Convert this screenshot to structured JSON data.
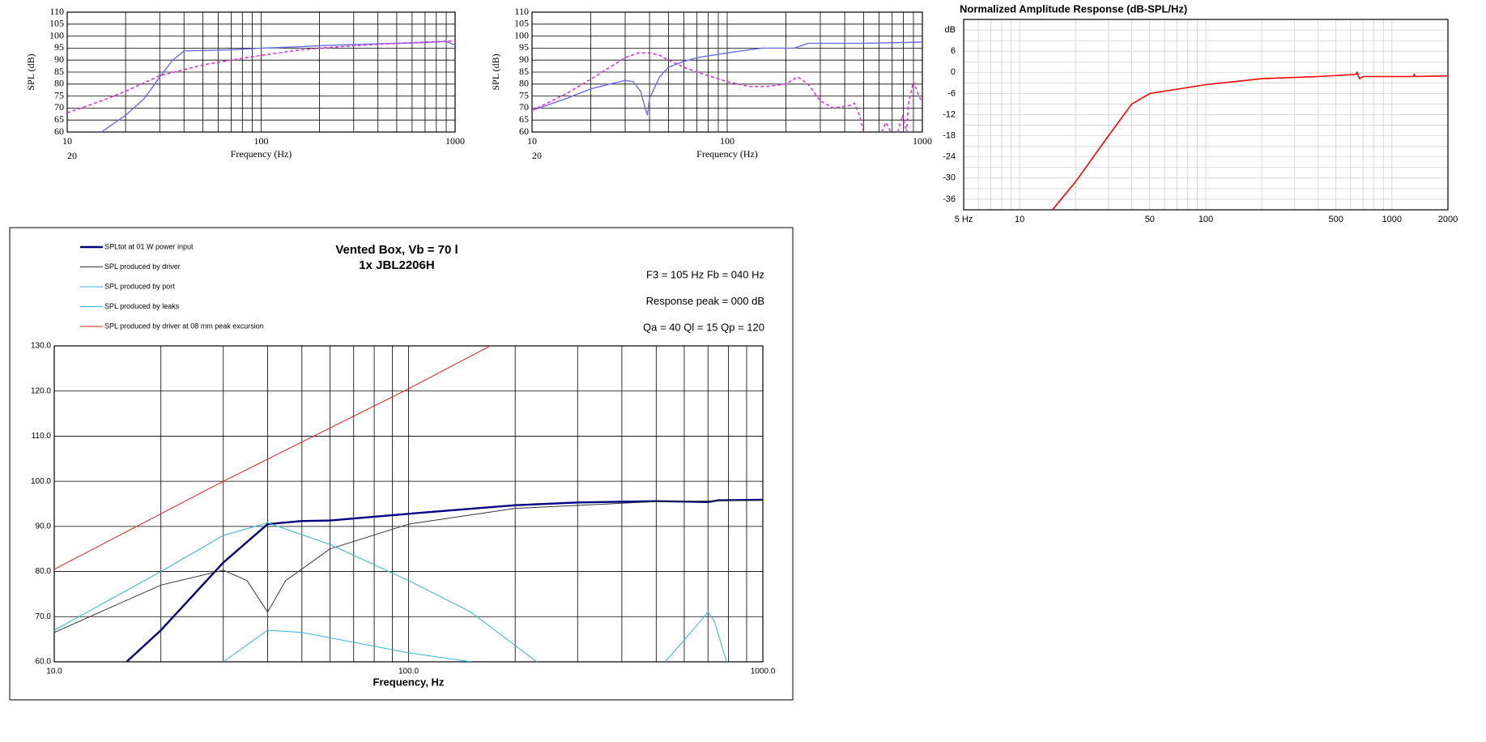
{
  "chart_data": [
    {
      "type": "line",
      "xscale": "log",
      "xlabel": "Frequency (Hz)",
      "ylabel": "SPL (dB)",
      "annotation": "20",
      "xlim": [
        10,
        1000
      ],
      "ylim": [
        60,
        110
      ],
      "xticks": [
        10,
        100,
        1000
      ],
      "yticks": [
        60,
        65,
        70,
        75,
        80,
        85,
        90,
        95,
        100,
        105,
        110
      ],
      "xminor": [
        20,
        30,
        40,
        50,
        60,
        70,
        80,
        90,
        200,
        300,
        400,
        500,
        600,
        700,
        800,
        900
      ],
      "grid": true,
      "grid_color": "#000000",
      "series": [
        {
          "color": "#6b6bef",
          "dash": false,
          "line_width": 1.4,
          "x": [
            15,
            20,
            25,
            30,
            35,
            40,
            50,
            70,
            100,
            150,
            200,
            300,
            500,
            700,
            900,
            950,
            1000
          ],
          "values": [
            60,
            67,
            74,
            83,
            90,
            93.8,
            94,
            94.3,
            95,
            95.5,
            96,
            96.5,
            97,
            97.3,
            97.8,
            97,
            96.3
          ]
        },
        {
          "color": "#e030e0",
          "dash": true,
          "line_width": 1.6,
          "x": [
            10,
            15,
            20,
            30,
            40,
            50,
            70,
            100,
            150,
            200,
            300,
            500,
            700,
            1000
          ],
          "values": [
            68,
            73,
            77,
            83.5,
            86,
            88,
            90,
            92,
            94,
            95,
            96,
            97,
            97.5,
            98
          ]
        }
      ]
    },
    {
      "type": "line",
      "xscale": "log",
      "xlabel": "Frequency (Hz)",
      "ylabel": "SPL (dB)",
      "annotation": "20",
      "xlim": [
        10,
        1000
      ],
      "ylim": [
        60,
        110
      ],
      "xticks": [
        10,
        100,
        1000
      ],
      "yticks": [
        60,
        65,
        70,
        75,
        80,
        85,
        90,
        95,
        100,
        105,
        110
      ],
      "xminor": [
        20,
        30,
        40,
        50,
        60,
        70,
        80,
        90,
        200,
        300,
        400,
        500,
        600,
        700,
        800,
        900
      ],
      "grid": true,
      "grid_color": "#000000",
      "series": [
        {
          "color": "#6b6bef",
          "dash": false,
          "line_width": 1.4,
          "x": [
            10,
            15,
            20,
            25,
            30,
            33,
            36,
            38,
            39,
            40,
            45,
            50,
            60,
            70,
            100,
            150,
            220,
            240,
            260,
            300,
            500,
            1000
          ],
          "values": [
            69,
            74,
            78,
            80,
            81.5,
            81,
            77,
            70,
            67,
            74,
            83,
            87,
            89.5,
            91,
            93,
            95,
            95,
            96,
            97,
            97,
            97,
            97.5
          ]
        },
        {
          "color": "#e030e0",
          "dash": true,
          "line_width": 1.6,
          "x": [
            10,
            15,
            20,
            25,
            30,
            35,
            40,
            45,
            50,
            60,
            70,
            100,
            130,
            160,
            200,
            230,
            260,
            300,
            350,
            420,
            450,
            480,
            500,
            560,
            620,
            650,
            690,
            720,
            750,
            790,
            830,
            850,
            900,
            950,
            1000
          ],
          "values": [
            69,
            76,
            82,
            87,
            91,
            93,
            93,
            92,
            90,
            87,
            85,
            81,
            79,
            79,
            80,
            83,
            80,
            73,
            70,
            71,
            72,
            66,
            60,
            null,
            60,
            64,
            60,
            null,
            60,
            67,
            60,
            72,
            81,
            76,
            72
          ]
        }
      ]
    },
    {
      "type": "line",
      "xscale": "log",
      "title": "Normalized Amplitude Response (dB-SPL/Hz)",
      "xlim": [
        5,
        2000
      ],
      "ylim": [
        -39,
        15
      ],
      "xticks": [
        {
          "value": 5,
          "label": "5 Hz"
        },
        10,
        50,
        100,
        500,
        1000,
        2000
      ],
      "yticks": [
        {
          "value": 12,
          "label": "dB"
        },
        6,
        0,
        -6,
        -12,
        -18,
        -24,
        -30,
        -36
      ],
      "xminor": [
        6,
        7,
        8,
        9,
        20,
        30,
        40,
        60,
        70,
        80,
        90,
        200,
        300,
        400,
        600,
        700,
        800,
        900
      ],
      "yminor": [
        -33,
        -27,
        -21,
        -15,
        -9,
        -3,
        3,
        9
      ],
      "grid": true,
      "grid_color": "#d0d0d0",
      "series": [
        {
          "color": "#ff0000",
          "dash": false,
          "line_width": 1.6,
          "x": [
            15,
            20,
            30,
            40,
            50,
            100,
            200,
            400,
            640,
            650,
            670,
            700,
            1300,
            1320,
            1340,
            2000
          ],
          "values": [
            -39,
            -31,
            -18,
            -9,
            -6,
            -3.5,
            -1.8,
            -1.2,
            -0.6,
            0,
            -1.8,
            -1.2,
            -1.2,
            -0.6,
            -1.2,
            -1
          ]
        }
      ]
    },
    {
      "type": "line",
      "xscale": "log",
      "title": "Vented Box, Vb = 70 l",
      "subtitle": "1x JBL2206H",
      "xlabel": "Frequency, Hz",
      "notes": [
        "F3 = 105 Hz  Fb = 040 Hz",
        "Response  peak = 000 dB",
        "Qa = 40  Ql = 15  Qp = 120"
      ],
      "xlim": [
        10,
        1000
      ],
      "ylim": [
        60,
        130
      ],
      "xticks": [
        {
          "value": 10,
          "label": "10.0"
        },
        {
          "value": 100,
          "label": "100.0"
        },
        {
          "value": 1000,
          "label": "1000.0"
        }
      ],
      "yticks": [
        {
          "value": 60,
          "label": "60.0"
        },
        {
          "value": 70,
          "label": "70.0"
        },
        {
          "value": 80,
          "label": "80.0"
        },
        {
          "value": 90,
          "label": "90.0"
        },
        {
          "value": 100,
          "label": "100.0"
        },
        {
          "value": 110,
          "label": "110.0"
        },
        {
          "value": 120,
          "label": "120.0"
        },
        {
          "value": 130,
          "label": "130.0"
        }
      ],
      "xminor": [
        20,
        30,
        40,
        50,
        60,
        70,
        80,
        90,
        200,
        300,
        400,
        500,
        600,
        700,
        800,
        900
      ],
      "grid": true,
      "grid_color": "#000000",
      "series": [
        {
          "name": "SPLtot at 01 W power input",
          "color": "#000080",
          "dash": false,
          "line_width": 2.4,
          "x": [
            16,
            20,
            30,
            40,
            50,
            60,
            100,
            200,
            300,
            500,
            600,
            700,
            750,
            1000
          ],
          "values": [
            60,
            67,
            82,
            90.5,
            91.2,
            91.3,
            92.8,
            94.7,
            95.3,
            95.6,
            95.5,
            95.4,
            95.8,
            95.9
          ]
        },
        {
          "name": "SPL produced by driver",
          "color": "#333333",
          "dash": false,
          "line_width": 1,
          "x": [
            10,
            20,
            30,
            35,
            40,
            45,
            60,
            100,
            200,
            500,
            1000
          ],
          "values": [
            66.5,
            77,
            80.3,
            78,
            71,
            78,
            85,
            90.5,
            94,
            95.5,
            95.8
          ]
        },
        {
          "name": "SPL produced by port",
          "color": "#33b5cc",
          "dash": false,
          "line_width": 1,
          "x": [
            10,
            20,
            30,
            40,
            60,
            100,
            150,
            230,
            400,
            530,
            650,
            700,
            730,
            790
          ],
          "values": [
            67,
            80,
            88,
            90.8,
            86,
            78,
            71,
            60,
            null,
            60,
            68,
            71,
            69,
            60
          ]
        },
        {
          "name": "SPL produced by leaks",
          "color": "#33b5cc",
          "dash": false,
          "line_width": 1,
          "x": [
            30,
            40,
            50,
            100,
            150
          ],
          "values": [
            60,
            67,
            66.5,
            62,
            60
          ]
        },
        {
          "name": "SPL produced by driver at 08 mm peak excursion",
          "color": "#e02020",
          "dash": false,
          "line_width": 1,
          "x": [
            10,
            30,
            100,
            170
          ],
          "values": [
            80.5,
            100,
            120.5,
            130
          ]
        }
      ]
    }
  ]
}
